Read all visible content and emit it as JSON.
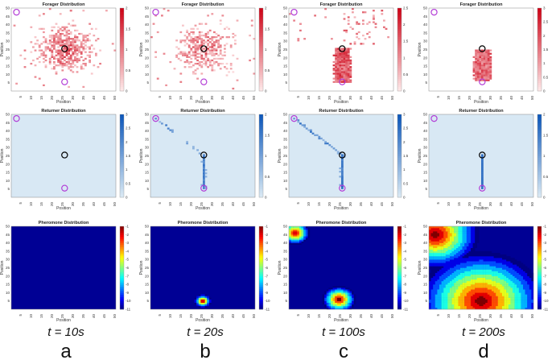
{
  "chart_data": [
    {
      "type": "heatmap",
      "title": "Forager Distribution",
      "xlabel": "Position",
      "ylabel": "Position",
      "xlim": [
        0,
        50
      ],
      "ylim": [
        0,
        50
      ],
      "colorbar": {
        "min": 0,
        "max": 2,
        "ticks": [
          "0",
          "0.5",
          "1",
          "1.5",
          "2"
        ],
        "colormap": "reds"
      },
      "pattern": {
        "kind": "cloud",
        "center": [
          25,
          25
        ],
        "spread": 11,
        "density": 0.55,
        "value": 1.2
      },
      "markers": [
        {
          "color": "#b23bd6",
          "x": 2,
          "y": 47
        },
        {
          "color": "#000000",
          "x": 25,
          "y": 25
        },
        {
          "color": "#b23bd6",
          "x": 25,
          "y": 5
        }
      ]
    },
    {
      "type": "heatmap",
      "title": "Forager Distribution",
      "xlabel": "Position",
      "ylabel": "Position",
      "xlim": [
        0,
        50
      ],
      "ylim": [
        0,
        50
      ],
      "colorbar": {
        "min": 0,
        "max": 2,
        "ticks": [
          "0",
          "0.5",
          "1",
          "1.5",
          "2"
        ],
        "colormap": "reds"
      },
      "pattern": {
        "kind": "cloud",
        "center": [
          25,
          25
        ],
        "spread": 11,
        "density": 0.45,
        "value": 1.1
      },
      "markers": [
        {
          "color": "#b23bd6",
          "x": 2,
          "y": 47
        },
        {
          "color": "#000000",
          "x": 25,
          "y": 25
        },
        {
          "color": "#b23bd6",
          "x": 25,
          "y": 5
        }
      ]
    },
    {
      "type": "heatmap",
      "title": "Forager Distribution",
      "xlabel": "Position",
      "ylabel": "Position",
      "xlim": [
        0,
        50
      ],
      "ylim": [
        0,
        50
      ],
      "colorbar": {
        "min": 0,
        "max": 2.5,
        "ticks": [
          "0",
          "0.5",
          "1",
          "1.5",
          "2",
          "2.5"
        ],
        "colormap": "reds"
      },
      "pattern": {
        "kind": "column",
        "center": [
          25,
          15
        ],
        "halfwidth": 4,
        "halfheight": 10,
        "value": 1.8,
        "sparse": 0.15
      },
      "markers": [
        {
          "color": "#b23bd6",
          "x": 2,
          "y": 47
        },
        {
          "color": "#000000",
          "x": 25,
          "y": 25
        },
        {
          "color": "#b23bd6",
          "x": 25,
          "y": 5
        }
      ]
    },
    {
      "type": "heatmap",
      "title": "Forager Distribution",
      "xlabel": "Position",
      "ylabel": "Position",
      "xlim": [
        0,
        50
      ],
      "ylim": [
        0,
        50
      ],
      "colorbar": {
        "min": 0,
        "max": 3,
        "ticks": [
          "0",
          "0.5",
          "1",
          "1.5",
          "2",
          "2.5",
          "3"
        ],
        "colormap": "reds"
      },
      "pattern": {
        "kind": "column",
        "center": [
          25,
          15
        ],
        "halfwidth": 4,
        "halfheight": 9,
        "value": 2,
        "sparse": 0
      },
      "markers": [
        {
          "color": "#b23bd6",
          "x": 2,
          "y": 47
        },
        {
          "color": "#000000",
          "x": 25,
          "y": 25
        },
        {
          "color": "#b23bd6",
          "x": 25,
          "y": 5
        }
      ]
    },
    {
      "type": "heatmap",
      "title": "Returner Distribution",
      "xlabel": "Position",
      "ylabel": "Position",
      "xlim": [
        0,
        50
      ],
      "ylim": [
        0,
        50
      ],
      "colorbar": {
        "min": 0,
        "max": 3,
        "ticks": [
          "0",
          "0.5",
          "1",
          "1.5",
          "2",
          "2.5",
          "3"
        ],
        "colormap": "blues"
      },
      "pattern": {
        "kind": "empty"
      },
      "markers": [
        {
          "color": "#b23bd6",
          "x": 2,
          "y": 47
        },
        {
          "color": "#000000",
          "x": 25,
          "y": 25
        },
        {
          "color": "#b23bd6",
          "x": 25,
          "y": 5
        }
      ]
    },
    {
      "type": "heatmap",
      "title": "Returner Distribution",
      "xlabel": "Position",
      "ylabel": "Position",
      "xlim": [
        0,
        50
      ],
      "ylim": [
        0,
        50
      ],
      "colorbar": {
        "min": 0,
        "max": 2,
        "ticks": [
          "0",
          "0.5",
          "1",
          "1.5",
          "2"
        ],
        "colormap": "blues"
      },
      "pattern": {
        "kind": "trail",
        "from": [
          2,
          47
        ],
        "to": [
          25,
          25
        ],
        "down": [
          25,
          5
        ],
        "value": 1.5,
        "gaps": 0.45
      },
      "markers": [
        {
          "color": "#b23bd6",
          "x": 2,
          "y": 47
        },
        {
          "color": "#000000",
          "x": 25,
          "y": 25
        },
        {
          "color": "#b23bd6",
          "x": 25,
          "y": 5
        }
      ]
    },
    {
      "type": "heatmap",
      "title": "Returner Distribution",
      "xlabel": "Position",
      "ylabel": "Position",
      "xlim": [
        0,
        50
      ],
      "ylim": [
        0,
        50
      ],
      "colorbar": {
        "min": 0,
        "max": 3,
        "ticks": [
          "0",
          "0.5",
          "1",
          "1.5",
          "2",
          "2.5",
          "3"
        ],
        "colormap": "blues"
      },
      "pattern": {
        "kind": "trail",
        "from": [
          2,
          47
        ],
        "to": [
          25,
          25
        ],
        "down": [
          25,
          5
        ],
        "value": 2.5,
        "gaps": 0.2
      },
      "markers": [
        {
          "color": "#b23bd6",
          "x": 2,
          "y": 47
        },
        {
          "color": "#000000",
          "x": 25,
          "y": 25
        },
        {
          "color": "#b23bd6",
          "x": 25,
          "y": 5
        }
      ]
    },
    {
      "type": "heatmap",
      "title": "Returner Distribution",
      "xlabel": "Position",
      "ylabel": "Position",
      "xlim": [
        0,
        50
      ],
      "ylim": [
        0,
        50
      ],
      "colorbar": {
        "min": 0,
        "max": 2,
        "ticks": [
          "0",
          "0.5",
          "1",
          "1.5",
          "2"
        ],
        "colormap": "blues"
      },
      "pattern": {
        "kind": "vline",
        "x": 25,
        "y0": 5,
        "y1": 25,
        "value": 1.8
      },
      "markers": [
        {
          "color": "#b23bd6",
          "x": 2,
          "y": 47
        },
        {
          "color": "#000000",
          "x": 25,
          "y": 25
        },
        {
          "color": "#b23bd6",
          "x": 25,
          "y": 5
        }
      ]
    },
    {
      "type": "heatmap",
      "title": "Pheromone Distribution",
      "xlabel": "Position",
      "ylabel": "Position",
      "xlim": [
        0,
        50
      ],
      "ylim": [
        0,
        50
      ],
      "colorbar": {
        "min": -11,
        "max": -1,
        "ticks": [
          "-11",
          "-10",
          "-9",
          "-8",
          "-7",
          "-6",
          "-5",
          "-4",
          "-3",
          "-2",
          "-1"
        ],
        "colormap": "jet"
      },
      "pattern": {
        "kind": "blobs",
        "blobs": []
      },
      "markers": []
    },
    {
      "type": "heatmap",
      "title": "Pheromone Distribution",
      "xlabel": "Position",
      "ylabel": "Position",
      "xlim": [
        0,
        50
      ],
      "ylim": [
        0,
        50
      ],
      "colorbar": {
        "min": -11,
        "max": -1,
        "ticks": [
          "-11",
          "-10",
          "-9",
          "-8",
          "-7",
          "-6",
          "-5",
          "-4",
          "-3",
          "-2",
          "-1"
        ],
        "colormap": "jet"
      },
      "pattern": {
        "kind": "blobs",
        "blobs": [
          {
            "x": 25,
            "y": 5,
            "r": 4
          }
        ]
      },
      "markers": []
    },
    {
      "type": "heatmap",
      "title": "Pheromone Distribution",
      "xlabel": "Position",
      "ylabel": "Position",
      "xlim": [
        0,
        50
      ],
      "ylim": [
        0,
        50
      ],
      "colorbar": {
        "min": -11,
        "max": -1,
        "ticks": [
          "-11",
          "-10",
          "-9",
          "-8",
          "-7",
          "-6",
          "-5",
          "-4",
          "-3",
          "-2",
          "-1"
        ],
        "colormap": "jet"
      },
      "pattern": {
        "kind": "blobs",
        "blobs": [
          {
            "x": 3,
            "y": 46,
            "r": 7
          },
          {
            "x": 24,
            "y": 6,
            "r": 8
          }
        ]
      },
      "markers": []
    },
    {
      "type": "heatmap",
      "title": "Pheromone Distribution",
      "xlabel": "Position",
      "ylabel": "Position",
      "xlim": [
        0,
        50
      ],
      "ylim": [
        0,
        50
      ],
      "colorbar": {
        "min": -11,
        "max": -1,
        "ticks": [
          "-11",
          "-10",
          "-9",
          "-8",
          "-7",
          "-6",
          "-5",
          "-4",
          "-3",
          "-2",
          "-1"
        ],
        "colormap": "jet"
      },
      "pattern": {
        "kind": "blobs",
        "blobs": [
          {
            "x": 3,
            "y": 45,
            "r": 21
          },
          {
            "x": 25,
            "y": 5,
            "r": 30
          }
        ]
      },
      "markers": []
    }
  ],
  "xticks": [
    "5",
    "10",
    "15",
    "20",
    "25",
    "30",
    "35",
    "40",
    "45",
    "50"
  ],
  "yticks": [
    "5",
    "10",
    "15",
    "20",
    "25",
    "30",
    "35",
    "40",
    "45",
    "50"
  ],
  "times": [
    "t = 10s",
    "t = 20s",
    "t = 100s",
    "t = 200s"
  ],
  "letters": [
    "a",
    "b",
    "c",
    "d"
  ]
}
